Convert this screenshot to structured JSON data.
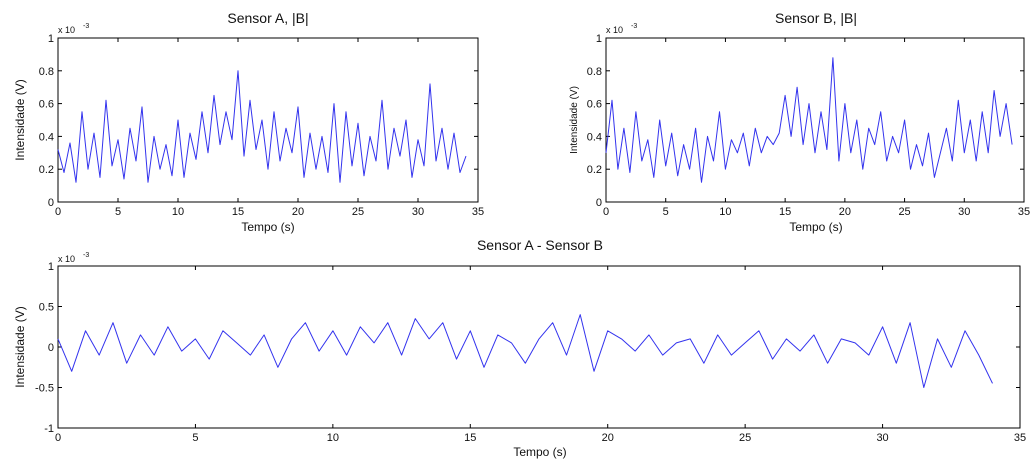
{
  "chart_data": [
    {
      "type": "line",
      "title": "Sensor A, |B|",
      "xlabel": "Tempo (s)",
      "ylabel": "Intensidade (V)",
      "exponent_label": "x 10",
      "exponent": "-3",
      "xlim": [
        0,
        35
      ],
      "ylim": [
        0,
        1
      ],
      "xticks": [
        0,
        5,
        10,
        15,
        20,
        25,
        30,
        35
      ],
      "yticks": [
        0,
        0.2,
        0.4,
        0.6,
        0.8,
        1
      ],
      "ytick_labels": [
        "0",
        "0.2",
        "0.4",
        "0.6",
        "0.8",
        "1"
      ],
      "grid": false,
      "color": "#3333ee",
      "series": [
        {
          "x": [
            0,
            0.5,
            1,
            1.5,
            2,
            2.5,
            3,
            3.5,
            4,
            4.5,
            5,
            5.5,
            6,
            6.5,
            7,
            7.5,
            8,
            8.5,
            9,
            9.5,
            10,
            10.5,
            11,
            11.5,
            12,
            12.5,
            13,
            13.5,
            14,
            14.5,
            15,
            15.5,
            16,
            16.5,
            17,
            17.5,
            18,
            18.5,
            19,
            19.5,
            20,
            20.5,
            21,
            21.5,
            22,
            22.5,
            23,
            23.5,
            24,
            24.5,
            25,
            25.5,
            26,
            26.5,
            27,
            27.5,
            28,
            28.5,
            29,
            29.5,
            30,
            30.5,
            31,
            31.5,
            32,
            32.5,
            33,
            33.5,
            34
          ],
          "values": [
            0.32,
            0.18,
            0.36,
            0.12,
            0.55,
            0.2,
            0.42,
            0.15,
            0.62,
            0.22,
            0.38,
            0.14,
            0.45,
            0.25,
            0.58,
            0.12,
            0.4,
            0.2,
            0.35,
            0.16,
            0.5,
            0.15,
            0.42,
            0.26,
            0.55,
            0.3,
            0.65,
            0.35,
            0.55,
            0.38,
            0.8,
            0.28,
            0.62,
            0.32,
            0.5,
            0.2,
            0.55,
            0.25,
            0.45,
            0.3,
            0.58,
            0.15,
            0.42,
            0.2,
            0.4,
            0.18,
            0.6,
            0.12,
            0.55,
            0.22,
            0.48,
            0.16,
            0.4,
            0.25,
            0.62,
            0.2,
            0.45,
            0.28,
            0.5,
            0.15,
            0.38,
            0.22,
            0.72,
            0.25,
            0.45,
            0.2,
            0.42,
            0.18,
            0.28
          ]
        }
      ]
    },
    {
      "type": "line",
      "title": "Sensor B, |B|",
      "xlabel": "Tempo (s)",
      "ylabel": "Intensidade (V)",
      "exponent_label": "x 10",
      "exponent": "-3",
      "xlim": [
        0,
        35
      ],
      "ylim": [
        0,
        1
      ],
      "xticks": [
        0,
        5,
        10,
        15,
        20,
        25,
        30,
        35
      ],
      "yticks": [
        0,
        0.2,
        0.4,
        0.6,
        0.8,
        1
      ],
      "ytick_labels": [
        "0",
        "0.2",
        "0.4",
        "0.6",
        "0.8",
        "1"
      ],
      "grid": false,
      "color": "#3333ee",
      "series": [
        {
          "x": [
            0,
            0.5,
            1,
            1.5,
            2,
            2.5,
            3,
            3.5,
            4,
            4.5,
            5,
            5.5,
            6,
            6.5,
            7,
            7.5,
            8,
            8.5,
            9,
            9.5,
            10,
            10.5,
            11,
            11.5,
            12,
            12.5,
            13,
            13.5,
            14,
            14.5,
            15,
            15.5,
            16,
            16.5,
            17,
            17.5,
            18,
            18.5,
            19,
            19.5,
            20,
            20.5,
            21,
            21.5,
            22,
            22.5,
            23,
            23.5,
            24,
            24.5,
            25,
            25.5,
            26,
            26.5,
            27,
            27.5,
            28,
            28.5,
            29,
            29.5,
            30,
            30.5,
            31,
            31.5,
            32,
            32.5,
            33,
            33.5,
            34
          ],
          "values": [
            0.3,
            0.62,
            0.2,
            0.45,
            0.18,
            0.55,
            0.25,
            0.38,
            0.15,
            0.5,
            0.22,
            0.42,
            0.16,
            0.35,
            0.2,
            0.45,
            0.12,
            0.4,
            0.25,
            0.55,
            0.2,
            0.38,
            0.3,
            0.42,
            0.22,
            0.45,
            0.3,
            0.4,
            0.35,
            0.42,
            0.65,
            0.4,
            0.7,
            0.35,
            0.6,
            0.3,
            0.55,
            0.32,
            0.88,
            0.25,
            0.6,
            0.3,
            0.5,
            0.2,
            0.45,
            0.35,
            0.55,
            0.25,
            0.4,
            0.3,
            0.5,
            0.2,
            0.35,
            0.22,
            0.42,
            0.15,
            0.3,
            0.45,
            0.25,
            0.62,
            0.3,
            0.5,
            0.25,
            0.55,
            0.3,
            0.68,
            0.4,
            0.6,
            0.35
          ]
        }
      ]
    },
    {
      "type": "line",
      "title": "Sensor A - Sensor B",
      "xlabel": "Tempo (s)",
      "ylabel": "Intensidade (V)",
      "exponent_label": "x 10",
      "exponent": "-3",
      "xlim": [
        0,
        35
      ],
      "ylim": [
        -1,
        1
      ],
      "xticks": [
        0,
        5,
        10,
        15,
        20,
        25,
        30,
        35
      ],
      "yticks": [
        -1,
        -0.5,
        0,
        0.5,
        1
      ],
      "ytick_labels": [
        "-1",
        "-0.5",
        "0",
        "0.5",
        "1"
      ],
      "grid": false,
      "color": "#3333ee",
      "series": [
        {
          "x": [
            0,
            0.5,
            1,
            1.5,
            2,
            2.5,
            3,
            3.5,
            4,
            4.5,
            5,
            5.5,
            6,
            6.5,
            7,
            7.5,
            8,
            8.5,
            9,
            9.5,
            10,
            10.5,
            11,
            11.5,
            12,
            12.5,
            13,
            13.5,
            14,
            14.5,
            15,
            15.5,
            16,
            16.5,
            17,
            17.5,
            18,
            18.5,
            19,
            19.5,
            20,
            20.5,
            21,
            21.5,
            22,
            22.5,
            23,
            23.5,
            24,
            24.5,
            25,
            25.5,
            26,
            26.5,
            27,
            27.5,
            28,
            28.5,
            29,
            29.5,
            30,
            30.5,
            31,
            31.5,
            32,
            32.5,
            33,
            33.5,
            34
          ],
          "values": [
            0.1,
            -0.3,
            0.2,
            -0.1,
            0.3,
            -0.2,
            0.15,
            -0.1,
            0.25,
            -0.05,
            0.1,
            -0.15,
            0.2,
            0.05,
            -0.1,
            0.15,
            -0.25,
            0.1,
            0.3,
            -0.05,
            0.2,
            -0.1,
            0.25,
            0.05,
            0.3,
            -0.1,
            0.35,
            0.1,
            0.3,
            -0.15,
            0.2,
            -0.25,
            0.15,
            0.05,
            -0.2,
            0.1,
            0.3,
            -0.1,
            0.4,
            -0.3,
            0.2,
            0.1,
            -0.05,
            0.15,
            -0.1,
            0.05,
            0.1,
            -0.2,
            0.15,
            -0.1,
            0.05,
            0.2,
            -0.15,
            0.1,
            -0.05,
            0.15,
            -0.2,
            0.1,
            0.05,
            -0.1,
            0.25,
            -0.2,
            0.3,
            -0.5,
            0.1,
            -0.25,
            0.2,
            -0.1,
            -0.45
          ]
        }
      ]
    }
  ]
}
